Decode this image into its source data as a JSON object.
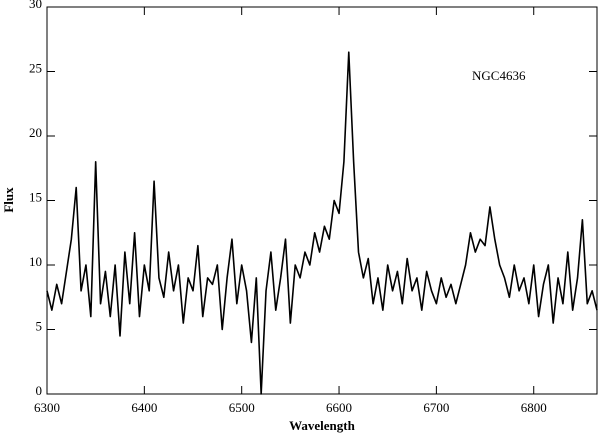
{
  "chart_data": {
    "type": "line",
    "x_label": "Wavelength",
    "y_label": "Flux",
    "annotation": "NGC4636",
    "xlim": [
      6300,
      6865
    ],
    "ylim": [
      0,
      30
    ],
    "xticks": [
      6300,
      6400,
      6500,
      6600,
      6700,
      6800
    ],
    "yticks": [
      0,
      5,
      10,
      15,
      20,
      25,
      30
    ],
    "color": "#000000",
    "x": [
      6300,
      6305,
      6310,
      6315,
      6320,
      6325,
      6330,
      6335,
      6340,
      6345,
      6350,
      6355,
      6360,
      6365,
      6370,
      6375,
      6380,
      6385,
      6390,
      6395,
      6400,
      6405,
      6410,
      6415,
      6420,
      6425,
      6430,
      6435,
      6440,
      6445,
      6450,
      6455,
      6460,
      6465,
      6470,
      6475,
      6480,
      6485,
      6490,
      6495,
      6500,
      6505,
      6510,
      6515,
      6520,
      6525,
      6530,
      6535,
      6540,
      6545,
      6550,
      6555,
      6560,
      6565,
      6570,
      6575,
      6580,
      6585,
      6590,
      6595,
      6600,
      6605,
      6610,
      6615,
      6620,
      6625,
      6630,
      6635,
      6640,
      6645,
      6650,
      6655,
      6660,
      6665,
      6670,
      6675,
      6680,
      6685,
      6690,
      6695,
      6700,
      6705,
      6710,
      6715,
      6720,
      6725,
      6730,
      6735,
      6740,
      6745,
      6750,
      6755,
      6760,
      6765,
      6770,
      6775,
      6780,
      6785,
      6790,
      6795,
      6800,
      6805,
      6810,
      6815,
      6820,
      6825,
      6830,
      6835,
      6840,
      6845,
      6850,
      6855,
      6860,
      6865
    ],
    "values": [
      8,
      6.5,
      8.5,
      7,
      9.5,
      12,
      16,
      8,
      10,
      6,
      18,
      7,
      9.5,
      6,
      10,
      4.5,
      11,
      7,
      12.5,
      6,
      10,
      8,
      16.5,
      9,
      7.5,
      11,
      8,
      10,
      5.5,
      9,
      8,
      11.5,
      6,
      9,
      8.5,
      10,
      5,
      9,
      12,
      7,
      10,
      8,
      4,
      9,
      0,
      8,
      11,
      6.5,
      9,
      12,
      5.5,
      10,
      9,
      11,
      10,
      12.5,
      11,
      13,
      12,
      15,
      14,
      18,
      26.5,
      18,
      11,
      9,
      10.5,
      7,
      9,
      6.5,
      10,
      8,
      9.5,
      7,
      10.5,
      8,
      9,
      6.5,
      9.5,
      8,
      7,
      9,
      7.5,
      8.5,
      7,
      8.5,
      10,
      12.5,
      11,
      12,
      11.5,
      14.5,
      12,
      10,
      9,
      7.5,
      10,
      8,
      9,
      7,
      10,
      6,
      8.5,
      10,
      5.5,
      9,
      7,
      11,
      6.5,
      9,
      13.5,
      7,
      8,
      6.5
    ]
  }
}
